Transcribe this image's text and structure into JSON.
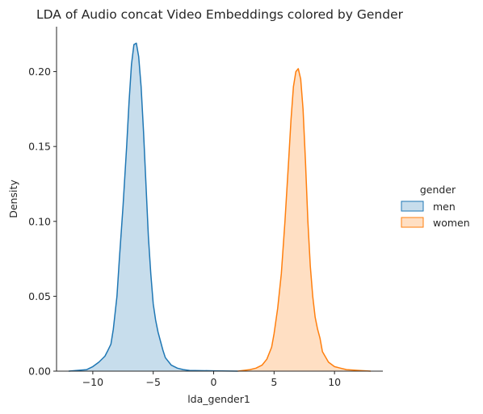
{
  "chart_data": {
    "type": "area",
    "title": "LDA of Audio concat Video Embeddings colored by Gender",
    "xlabel": "lda_gender1",
    "ylabel": "Density",
    "xlim": [
      -13,
      14
    ],
    "ylim": [
      0,
      0.23
    ],
    "xticks": [
      -10,
      -5,
      0,
      5,
      10
    ],
    "yticks": [
      0.0,
      0.05,
      0.1,
      0.15,
      0.2
    ],
    "xtick_labels": [
      "−10",
      "−5",
      "0",
      "5",
      "10"
    ],
    "ytick_labels": [
      "0.00",
      "0.05",
      "0.10",
      "0.15",
      "0.20"
    ],
    "grid": false,
    "legend": {
      "title": "gender",
      "placement": "right",
      "entries": [
        {
          "name": "men",
          "color": "#1f77b4"
        },
        {
          "name": "women",
          "color": "#ff7f0e"
        }
      ]
    },
    "series": [
      {
        "name": "men",
        "color": "#1f77b4",
        "x": [
          -12.0,
          -10.5,
          -10.0,
          -9.5,
          -9.0,
          -8.8,
          -8.5,
          -8.3,
          -8.0,
          -7.8,
          -7.5,
          -7.2,
          -7.0,
          -6.8,
          -6.6,
          -6.4,
          -6.2,
          -6.0,
          -5.8,
          -5.6,
          -5.4,
          -5.2,
          -5.0,
          -4.8,
          -4.6,
          -4.4,
          -4.2,
          -4.0,
          -3.5,
          -3.0,
          -2.5,
          -2.0,
          0.0,
          2.0
        ],
        "y": [
          0.0,
          0.001,
          0.003,
          0.006,
          0.01,
          0.013,
          0.018,
          0.028,
          0.05,
          0.075,
          0.11,
          0.15,
          0.18,
          0.205,
          0.218,
          0.219,
          0.21,
          0.19,
          0.16,
          0.125,
          0.09,
          0.065,
          0.045,
          0.034,
          0.026,
          0.02,
          0.014,
          0.009,
          0.004,
          0.002,
          0.001,
          0.0005,
          0.0002,
          0.0
        ]
      },
      {
        "name": "women",
        "color": "#ff7f0e",
        "x": [
          2.0,
          3.0,
          3.5,
          4.0,
          4.4,
          4.8,
          5.0,
          5.3,
          5.6,
          5.9,
          6.2,
          6.4,
          6.6,
          6.8,
          7.0,
          7.2,
          7.4,
          7.6,
          7.8,
          8.0,
          8.2,
          8.4,
          8.6,
          8.8,
          9.0,
          9.5,
          10.0,
          10.5,
          11.0,
          12.0,
          13.0
        ],
        "y": [
          0.0,
          0.001,
          0.002,
          0.004,
          0.008,
          0.016,
          0.025,
          0.042,
          0.065,
          0.1,
          0.14,
          0.168,
          0.19,
          0.2,
          0.202,
          0.195,
          0.175,
          0.14,
          0.1,
          0.07,
          0.05,
          0.036,
          0.028,
          0.022,
          0.013,
          0.006,
          0.003,
          0.002,
          0.001,
          0.0005,
          0.0
        ]
      }
    ]
  }
}
